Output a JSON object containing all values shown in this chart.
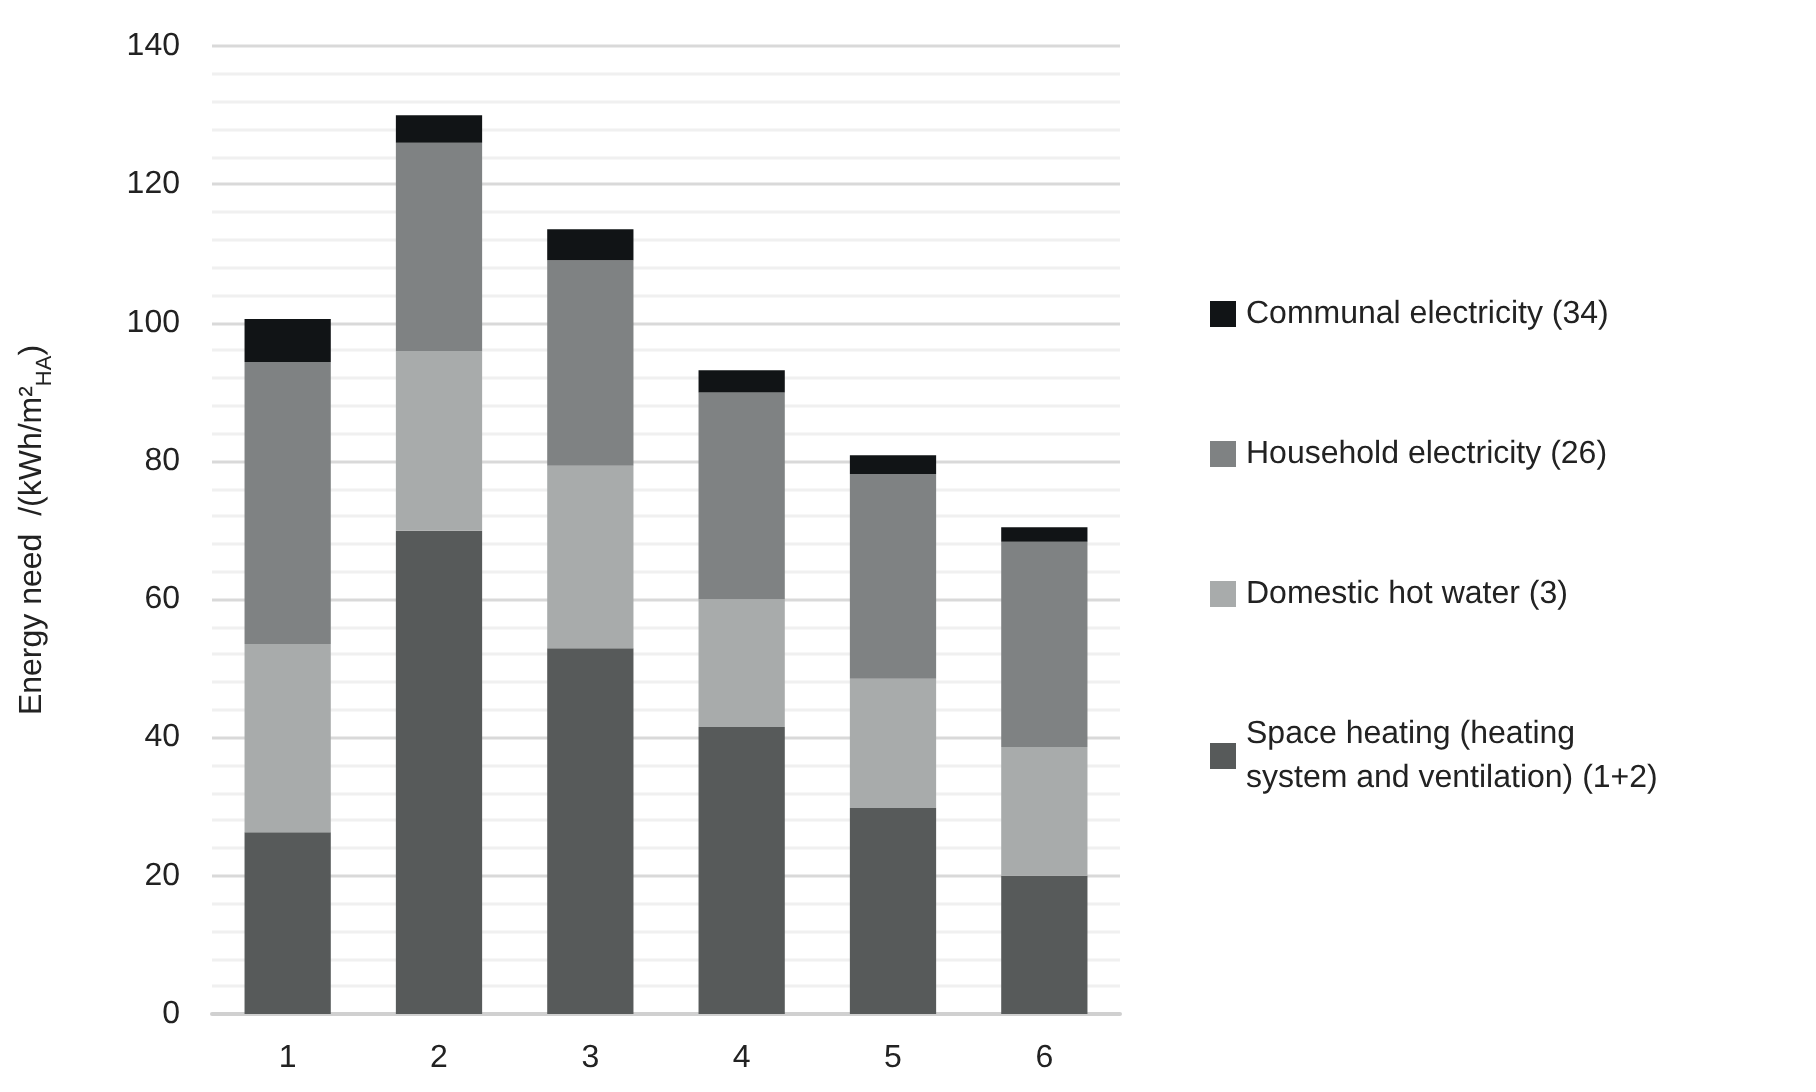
{
  "chart_data": {
    "type": "bar",
    "stacked": true,
    "ylabel": "Energy need  /(kWh/m²$_{HA}$)",
    "categories": [
      "1",
      "2",
      "3",
      "4",
      "5",
      "6"
    ],
    "series": [
      {
        "name": "Space heating (heating system and ventilation) (1+2)",
        "color": "#575a5a",
        "values": [
          26.3,
          69.9,
          52.9,
          41.5,
          29.8,
          20.0
        ]
      },
      {
        "name": "Domestic hot water (3)",
        "color": "#a8abab",
        "values": [
          27.2,
          26.0,
          26.4,
          18.5,
          18.7,
          18.6
        ]
      },
      {
        "name": "Household electricity (26)",
        "color": "#7f8283",
        "values": [
          40.8,
          30.1,
          29.7,
          29.9,
          29.6,
          29.7
        ]
      },
      {
        "name": "Communal electricity (34)",
        "color": "#111416",
        "values": [
          6.2,
          4.0,
          4.5,
          3.2,
          2.7,
          2.1
        ]
      }
    ],
    "ylim": [
      0,
      140
    ],
    "yticks": [
      0,
      {
        "value": 4,
        "label": null
      },
      {
        "value": 8,
        "label": null
      },
      {
        "value": 12,
        "label": null
      },
      {
        "value": 16,
        "label": null
      },
      20,
      {
        "value": 24,
        "label": null
      },
      {
        "value": 28,
        "label": null
      },
      {
        "value": 32,
        "label": null
      },
      {
        "value": 36,
        "label": null
      },
      40,
      {
        "value": 44,
        "label": null
      },
      {
        "value": 48,
        "label": null
      },
      {
        "value": 52,
        "label": null
      },
      {
        "value": 56,
        "label": null
      },
      60,
      {
        "value": 64,
        "label": null
      },
      {
        "value": 68,
        "label": null
      },
      {
        "value": 72,
        "label": null
      },
      {
        "value": 76,
        "label": null
      },
      80,
      {
        "value": 84,
        "label": null
      },
      {
        "value": 88,
        "label": null
      },
      {
        "value": 92,
        "label": null
      },
      {
        "value": 96,
        "label": null
      },
      100,
      {
        "value": 104,
        "label": null
      },
      {
        "value": 108,
        "label": null
      },
      {
        "value": 112,
        "label": null
      },
      {
        "value": 116,
        "label": null
      },
      120,
      {
        "value": 124,
        "label": null
      },
      {
        "value": 128,
        "label": null
      },
      {
        "value": 132,
        "label": null
      },
      {
        "value": 136,
        "label": null
      },
      140
    ],
    "grid": true,
    "legend": "right"
  }
}
